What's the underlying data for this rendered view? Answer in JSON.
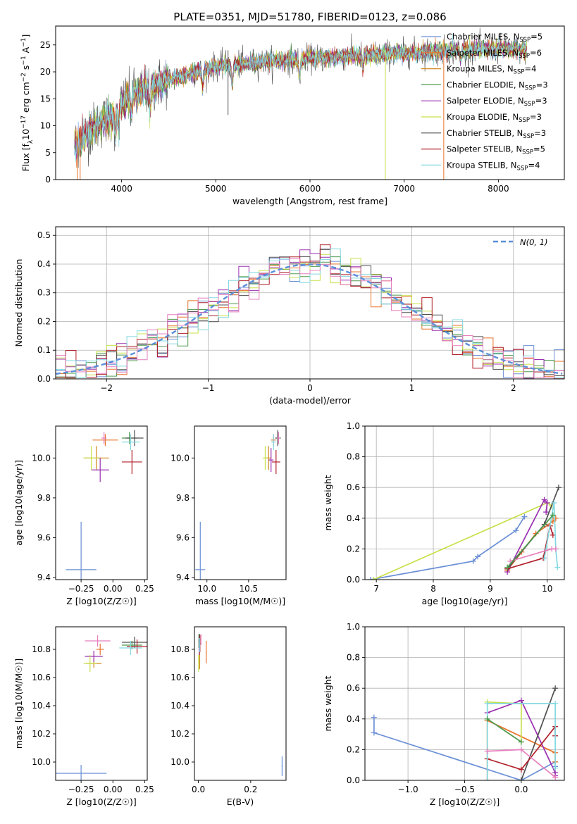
{
  "series_styles": [
    {
      "name": "Chabrier MILES, N$_{SSP}$=5",
      "label_main": "Chabrier MILES, N",
      "label_sub": "SSP",
      "label_tail": "=5",
      "color": "#6a8fd6"
    },
    {
      "name": "Salpeter MILES, N$_{SSP}$=6",
      "label_main": "Salpeter MILES, N",
      "label_sub": "SSP",
      "label_tail": "=6",
      "color": "#e8742c"
    },
    {
      "name": "Kroupa MILES, N$_{SSP}$=4",
      "label_main": "Kroupa MILES, N",
      "label_sub": "SSP",
      "label_tail": "=4",
      "color": "#d08a1e"
    },
    {
      "name": "Chabrier ELODIE, N$_{SSP}$=3",
      "label_main": "Chabrier ELODIE, N",
      "label_sub": "SSP",
      "label_tail": "=3",
      "color": "#4d9a4d"
    },
    {
      "name": "Salpeter ELODIE, N$_{SSP}$=3",
      "label_main": "Salpeter ELODIE, N",
      "label_sub": "SSP",
      "label_tail": "=3",
      "color": "#9b30b0"
    },
    {
      "name": "Kroupa ELODIE, N$_{SSP}$=3",
      "label_main": "Kroupa ELODIE, N",
      "label_sub": "SSP",
      "label_tail": "=3",
      "color": "#c8e04a"
    },
    {
      "name": "Chabrier STELIB, N$_{SSP}$=3",
      "label_main": "Chabrier STELIB, N",
      "label_sub": "SSP",
      "label_tail": "=3",
      "color": "#505050"
    },
    {
      "name": "Salpeter STELIB, N$_{SSP}$=5",
      "label_main": "Salpeter STELIB, N",
      "label_sub": "SSP",
      "label_tail": "=5",
      "color": "#b0202a"
    },
    {
      "name": "Kroupa STELIB, N$_{SSP}$=4",
      "label_main": "Kroupa STELIB, N",
      "label_sub": "SSP",
      "label_tail": "=4",
      "color": "#82d8e0"
    },
    {
      "name": "",
      "label_main": "",
      "label_sub": "",
      "label_tail": "",
      "color": "#e67fbd"
    }
  ],
  "chart_data": [
    {
      "id": "spectrum",
      "type": "line",
      "title": "PLATE=0351, MJD=51780, FIBERID=0123, z=0.086",
      "xlabel": "wavelength [Angstrom, rest frame]",
      "ylabel": "Flux [f_λ 10^-17 erg cm^-2 s^-1 A^-1]",
      "xlim": [
        3300,
        8700
      ],
      "ylim": [
        0,
        28.5
      ],
      "xticks": [
        4000,
        5000,
        6000,
        7000,
        8000
      ],
      "yticks": [
        0,
        5,
        10,
        15,
        20,
        25
      ],
      "xrange_data": [
        3500,
        8300
      ],
      "continuum": [
        [
          3500,
          6.5
        ],
        [
          3700,
          9.5
        ],
        [
          3900,
          12
        ],
        [
          4000,
          14
        ],
        [
          4100,
          15.5
        ],
        [
          4300,
          17
        ],
        [
          4500,
          18.5
        ],
        [
          4700,
          19.5
        ],
        [
          5000,
          21
        ],
        [
          5300,
          21.5
        ],
        [
          5600,
          22
        ],
        [
          6000,
          22.5
        ],
        [
          6500,
          23
        ],
        [
          7000,
          23.5
        ],
        [
          7500,
          24
        ],
        [
          8000,
          24.3
        ],
        [
          8300,
          24
        ]
      ],
      "absorption_features": [
        [
          3934,
          4.5
        ],
        [
          3968,
          4
        ],
        [
          4102,
          3
        ],
        [
          4300,
          4
        ],
        [
          4861,
          3
        ],
        [
          5175,
          4
        ],
        [
          5890,
          3.5
        ],
        [
          6563,
          2
        ],
        [
          7600,
          2
        ]
      ],
      "legend_position": "upper right",
      "grid": false
    },
    {
      "id": "residuals",
      "type": "histogram",
      "xlabel": "(data-model)/error",
      "ylabel": "Normed distribution",
      "xlim": [
        -2.5,
        2.5
      ],
      "ylim": [
        0,
        0.53
      ],
      "xticks": [
        -2,
        -1,
        0,
        1,
        2
      ],
      "yticks": [
        0.0,
        0.1,
        0.2,
        0.3,
        0.4,
        0.5
      ],
      "bin_width": 0.1,
      "reference_curve": "N(0,1)",
      "reference_label": "N(0, 1)",
      "legend_position": "upper right",
      "grid": true
    },
    {
      "id": "age_vs_Z",
      "type": "scatter",
      "xlabel": "Z [log10(Z/Z☉)]",
      "ylabel": "age [log10(age/yr)]",
      "xlim": [
        -0.45,
        0.27
      ],
      "ylim": [
        9.39,
        10.16
      ],
      "xticks": [
        -0.25,
        0.0,
        0.25
      ],
      "yticks": [
        9.4,
        9.6,
        9.8,
        10.0
      ],
      "points": [
        {
          "x": -0.25,
          "y": 9.44,
          "xerr": 0.12,
          "yerr": 0.24,
          "color": "#6a8fd6"
        },
        {
          "x": -0.06,
          "y": 10.09,
          "xerr": 0.1,
          "yerr": 0.03,
          "color": "#e8742c"
        },
        {
          "x": -0.13,
          "y": 10.0,
          "xerr": 0.1,
          "yerr": 0.06,
          "color": "#d08a1e"
        },
        {
          "x": 0.13,
          "y": 10.1,
          "xerr": 0.06,
          "yerr": 0.03,
          "color": "#4d9a4d"
        },
        {
          "x": -0.1,
          "y": 9.94,
          "xerr": 0.07,
          "yerr": 0.06,
          "color": "#9b30b0"
        },
        {
          "x": -0.17,
          "y": 10.0,
          "xerr": 0.06,
          "yerr": 0.06,
          "color": "#c8e04a"
        },
        {
          "x": 0.17,
          "y": 10.1,
          "xerr": 0.07,
          "yerr": 0.04,
          "color": "#505050"
        },
        {
          "x": 0.15,
          "y": 9.98,
          "xerr": 0.08,
          "yerr": 0.06,
          "color": "#b0202a"
        },
        {
          "x": 0.14,
          "y": 10.08,
          "xerr": 0.07,
          "yerr": 0.04,
          "color": "#82d8e0"
        },
        {
          "x": -0.07,
          "y": 10.1,
          "xerr": 0.02,
          "yerr": 0.03,
          "color": "#e67fbd"
        }
      ]
    },
    {
      "id": "age_vs_mass",
      "type": "scatter",
      "xlabel": "mass [log10(M/M☉)]",
      "ylabel": "",
      "xlim": [
        9.85,
        10.95
      ],
      "ylim": [
        9.39,
        10.16
      ],
      "xticks": [
        10.0,
        10.5
      ],
      "yticks": [
        9.4,
        9.6,
        9.8,
        10.0
      ],
      "points": [
        {
          "x": 9.92,
          "y": 9.44,
          "xerr": 0.06,
          "yerr": 0.24,
          "color": "#6a8fd6"
        },
        {
          "x": 10.8,
          "y": 10.09,
          "xerr": 0.03,
          "yerr": 0.03,
          "color": "#e8742c"
        },
        {
          "x": 10.74,
          "y": 10.0,
          "xerr": 0.03,
          "yerr": 0.06,
          "color": "#d08a1e"
        },
        {
          "x": 10.86,
          "y": 10.1,
          "xerr": 0.03,
          "yerr": 0.03,
          "color": "#4d9a4d"
        },
        {
          "x": 10.77,
          "y": 9.99,
          "xerr": 0.03,
          "yerr": 0.06,
          "color": "#9b30b0"
        },
        {
          "x": 10.7,
          "y": 10.0,
          "xerr": 0.03,
          "yerr": 0.06,
          "color": "#c8e04a"
        },
        {
          "x": 10.85,
          "y": 10.1,
          "xerr": 0.03,
          "yerr": 0.04,
          "color": "#505050"
        },
        {
          "x": 10.83,
          "y": 9.98,
          "xerr": 0.05,
          "yerr": 0.06,
          "color": "#b0202a"
        },
        {
          "x": 10.8,
          "y": 10.08,
          "xerr": 0.03,
          "yerr": 0.04,
          "color": "#82d8e0"
        },
        {
          "x": 10.86,
          "y": 10.1,
          "xerr": 0.02,
          "yerr": 0.03,
          "color": "#e67fbd"
        }
      ]
    },
    {
      "id": "massweight_vs_age",
      "type": "line",
      "xlabel": "age [log10(age/yr)]",
      "ylabel": "mass weight",
      "xlim": [
        6.8,
        10.3
      ],
      "ylim": [
        0,
        1.0
      ],
      "xticks": [
        7,
        8,
        9,
        10
      ],
      "yticks": [
        0.0,
        0.2,
        0.4,
        0.6,
        0.8,
        1.0
      ],
      "grid": true,
      "series": [
        {
          "color": "#6a8fd6",
          "x": [
            6.9,
            8.7,
            8.78,
            9.45,
            9.6
          ],
          "y": [
            0.0,
            0.12,
            0.15,
            0.32,
            0.41
          ]
        },
        {
          "color": "#e8742c",
          "x": [
            9.3,
            9.55,
            9.8,
            10.1,
            10.15
          ],
          "y": [
            0.06,
            0.18,
            0.3,
            0.38,
            0.4
          ]
        },
        {
          "color": "#c8e04a",
          "x": [
            6.95,
            10.0,
            10.08
          ],
          "y": [
            0.0,
            0.5,
            0.48
          ]
        },
        {
          "color": "#9b30b0",
          "x": [
            9.3,
            9.95,
            10.0,
            9.98
          ],
          "y": [
            0.05,
            0.52,
            0.5,
            0.44
          ]
        },
        {
          "color": "#505050",
          "x": [
            9.3,
            9.95,
            10.2
          ],
          "y": [
            0.07,
            0.36,
            0.6
          ]
        },
        {
          "color": "#b0202a",
          "x": [
            9.3,
            9.93,
            10.05,
            10.1
          ],
          "y": [
            0.07,
            0.14,
            0.35,
            0.29
          ]
        },
        {
          "color": "#82d8e0",
          "x": [
            9.95,
            10.12,
            10.15,
            10.18
          ],
          "y": [
            0.14,
            0.5,
            0.2,
            0.08
          ]
        },
        {
          "color": "#e67fbd",
          "x": [
            9.35,
            10.08,
            10.15
          ],
          "y": [
            0.12,
            0.2,
            0.2
          ]
        },
        {
          "color": "#4d9a4d",
          "x": [
            9.3,
            10.1
          ],
          "y": [
            0.08,
            0.42
          ]
        }
      ]
    },
    {
      "id": "mass_vs_Z",
      "type": "scatter",
      "xlabel": "Z [log10(Z/Z☉)]",
      "ylabel": "mass [log10(M/M☉)]",
      "xlim": [
        -0.45,
        0.27
      ],
      "ylim": [
        9.87,
        10.96
      ],
      "xticks": [
        -0.25,
        0.0,
        0.25
      ],
      "yticks": [
        10.0,
        10.2,
        10.4,
        10.6,
        10.8
      ],
      "points": [
        {
          "x": -0.25,
          "y": 9.92,
          "xerr": 0.2,
          "yerr": 0.06,
          "color": "#6a8fd6"
        },
        {
          "x": -0.1,
          "y": 10.8,
          "xerr": 0.03,
          "yerr": 0.04,
          "color": "#e8742c"
        },
        {
          "x": -0.15,
          "y": 10.7,
          "xerr": 0.06,
          "yerr": 0.03,
          "color": "#d08a1e"
        },
        {
          "x": 0.15,
          "y": 10.83,
          "xerr": 0.08,
          "yerr": 0.03,
          "color": "#4d9a4d"
        },
        {
          "x": -0.15,
          "y": 10.75,
          "xerr": 0.07,
          "yerr": 0.04,
          "color": "#9b30b0"
        },
        {
          "x": -0.18,
          "y": 10.7,
          "xerr": 0.05,
          "yerr": 0.06,
          "color": "#c8e04a"
        },
        {
          "x": 0.17,
          "y": 10.85,
          "xerr": 0.1,
          "yerr": 0.04,
          "color": "#505050"
        },
        {
          "x": 0.19,
          "y": 10.82,
          "xerr": 0.08,
          "yerr": 0.05,
          "color": "#b0202a"
        },
        {
          "x": 0.14,
          "y": 10.81,
          "xerr": 0.09,
          "yerr": 0.05,
          "color": "#82d8e0"
        },
        {
          "x": -0.12,
          "y": 10.86,
          "xerr": 0.1,
          "yerr": 0.04,
          "color": "#e67fbd"
        }
      ]
    },
    {
      "id": "mass_vs_EBV",
      "type": "scatter",
      "xlabel": "E(B-V)",
      "ylabel": "",
      "xlim": [
        -0.015,
        0.335
      ],
      "ylim": [
        9.87,
        10.96
      ],
      "xticks": [
        0.0,
        0.2
      ],
      "yticks": [
        10.0,
        10.2,
        10.4,
        10.6,
        10.8
      ],
      "points": [
        {
          "x": 0.32,
          "y": 9.97,
          "xerr": 0.002,
          "yerr": 0.07,
          "color": "#6a8fd6"
        },
        {
          "x": 0.03,
          "y": 10.78,
          "xerr": 0.002,
          "yerr": 0.08,
          "color": "#e8742c"
        },
        {
          "x": 0.005,
          "y": 10.72,
          "xerr": 0.002,
          "yerr": 0.06,
          "color": "#d08a1e"
        },
        {
          "x": 0.002,
          "y": 10.86,
          "xerr": 0.002,
          "yerr": 0.05,
          "color": "#4d9a4d"
        },
        {
          "x": 0.003,
          "y": 10.82,
          "xerr": 0.002,
          "yerr": 0.06,
          "color": "#9b30b0"
        },
        {
          "x": 0.001,
          "y": 10.7,
          "xerr": 0.002,
          "yerr": 0.06,
          "color": "#c8e04a"
        },
        {
          "x": 0.004,
          "y": 10.86,
          "xerr": 0.002,
          "yerr": 0.05,
          "color": "#505050"
        },
        {
          "x": 0.006,
          "y": 10.84,
          "xerr": 0.002,
          "yerr": 0.06,
          "color": "#b0202a"
        },
        {
          "x": 0.005,
          "y": 10.83,
          "xerr": 0.002,
          "yerr": 0.05,
          "color": "#82d8e0"
        },
        {
          "x": 0.01,
          "y": 10.87,
          "xerr": 0.002,
          "yerr": 0.04,
          "color": "#e67fbd"
        }
      ]
    },
    {
      "id": "massweight_vs_Z",
      "type": "line",
      "xlabel": "Z [log10(Z/Z☉)]",
      "ylabel": "mass weight",
      "xlim": [
        -1.38,
        0.38
      ],
      "ylim": [
        0,
        1.0
      ],
      "xticks": [
        -1.0,
        -0.5,
        0.0
      ],
      "yticks": [
        0.0,
        0.2,
        0.4,
        0.6,
        0.8,
        1.0
      ],
      "grid": true,
      "series": [
        {
          "color": "#6a8fd6",
          "x": [
            -1.3,
            -1.3,
            0.0,
            0.3,
            0.3
          ],
          "y": [
            0.41,
            0.31,
            0.0,
            0.12,
            0.09
          ]
        },
        {
          "color": "#e8742c",
          "x": [
            -0.3,
            -0.3,
            0.3,
            0.3
          ],
          "y": [
            0.0,
            0.39,
            0.18,
            0.12
          ]
        },
        {
          "color": "#c8e04a",
          "x": [
            -0.3,
            0.0,
            0.0
          ],
          "y": [
            0.51,
            0.5,
            0.25
          ]
        },
        {
          "color": "#9b30b0",
          "x": [
            -0.3,
            0.0,
            0.3,
            0.3
          ],
          "y": [
            0.44,
            0.52,
            0.05,
            0.03
          ]
        },
        {
          "color": "#505050",
          "x": [
            0.0,
            0.3
          ],
          "y": [
            0.0,
            0.6
          ]
        },
        {
          "color": "#b0202a",
          "x": [
            -0.3,
            0.0,
            0.3,
            0.3
          ],
          "y": [
            0.14,
            0.07,
            0.35,
            0.29
          ]
        },
        {
          "color": "#82d8e0",
          "x": [
            -0.3,
            -0.3,
            0.3,
            0.3
          ],
          "y": [
            0.0,
            0.5,
            0.5,
            0.08
          ]
        },
        {
          "color": "#e67fbd",
          "x": [
            -0.3,
            0.0,
            0.3
          ],
          "y": [
            0.19,
            0.2,
            0.02
          ]
        },
        {
          "color": "#4d9a4d",
          "x": [
            -0.3,
            0.0
          ],
          "y": [
            0.4,
            0.25
          ]
        }
      ]
    }
  ]
}
